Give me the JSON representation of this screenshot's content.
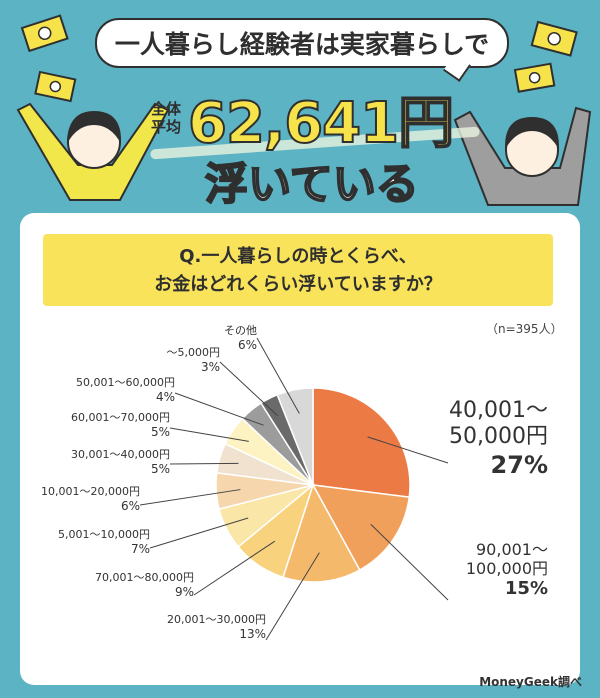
{
  "header": {
    "speech": "一人暮らし経験者は実家暮らしで",
    "avg_label_1": "全体",
    "avg_label_2": "平均",
    "amount": "62,641円",
    "sub": "浮いている"
  },
  "question": {
    "line1": "Q.一人暮らしの時とくらべ、",
    "line2": "お金はどれくらい浮いていますか？"
  },
  "sample": "（n=395人）",
  "source": "MoneyGeek調べ",
  "colors": {
    "background": "#5bb3c4",
    "question_box": "#f8e35a",
    "amount": "#f6e24b"
  },
  "chart_data": {
    "type": "pie",
    "title": "",
    "slices": [
      {
        "label": "40,001～50,000円",
        "value": 27,
        "display": "27%"
      },
      {
        "label": "90,001～100,000円",
        "value": 15,
        "display": "15%"
      },
      {
        "label": "20,001～30,000円",
        "value": 13,
        "display": "13%"
      },
      {
        "label": "70,001～80,000円",
        "value": 9,
        "display": "9%"
      },
      {
        "label": "5,001～10,000円",
        "value": 7,
        "display": "7%"
      },
      {
        "label": "10,001～20,000円",
        "value": 6,
        "display": "6%"
      },
      {
        "label": "30,001～40,000円",
        "value": 5,
        "display": "5%"
      },
      {
        "label": "60,001～70,000円",
        "value": 5,
        "display": "5%"
      },
      {
        "label": "50,001～60,000円",
        "value": 4,
        "display": "4%"
      },
      {
        "label": "～5,000円",
        "value": 3,
        "display": "3%"
      },
      {
        "label": "その他",
        "value": 6,
        "display": "6%"
      }
    ],
    "colors": [
      "#ec7a45",
      "#f0a05a",
      "#f5b96b",
      "#f8d27c",
      "#fae6a6",
      "#f5d6ad",
      "#f1e2cf",
      "#fdf3c2",
      "#9c9c9c",
      "#6a6a6a",
      "#d8d8d8"
    ]
  }
}
